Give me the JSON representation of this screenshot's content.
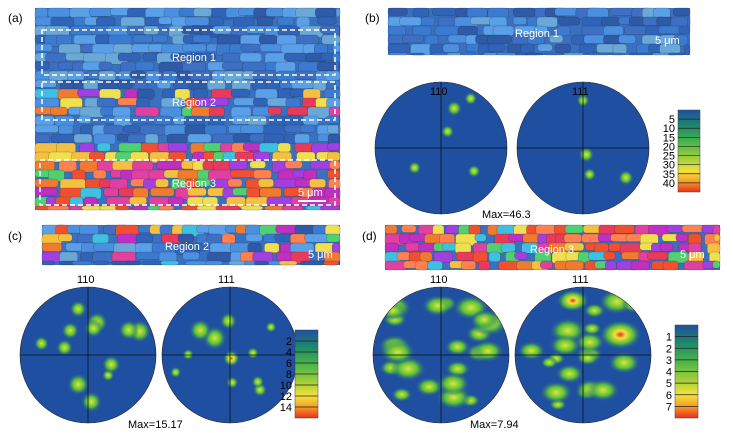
{
  "panels": [
    {
      "id": "a",
      "label": "(a)",
      "scale_bar": "5 μm",
      "regions": [
        "Region 1",
        "Region 2",
        "Region 3"
      ]
    },
    {
      "id": "b",
      "label": "(b)",
      "strip_region": "Region 1",
      "scale_bar": "5 μm",
      "poles": [
        "110",
        "111"
      ],
      "max": "Max=46.3",
      "colorbar": [
        "5",
        "10",
        "15",
        "20",
        "25",
        "30",
        "35",
        "40"
      ],
      "spots": [
        [
          0.2,
          -0.6,
          0.12
        ],
        [
          0.45,
          -0.75,
          0.1
        ],
        [
          0.1,
          -0.25,
          0.1
        ],
        [
          -0.4,
          0.3,
          0.1
        ],
        [
          0.5,
          0.35,
          0.1
        ]
      ],
      "spots2": [
        [
          0.0,
          -0.72,
          0.1
        ],
        [
          0.05,
          0.1,
          0.12
        ],
        [
          0.1,
          0.4,
          0.1
        ],
        [
          0.65,
          0.45,
          0.12
        ]
      ]
    },
    {
      "id": "c",
      "label": "(c)",
      "strip_region": "Region 2",
      "scale_bar": "5 μm",
      "poles": [
        "110",
        "111"
      ],
      "max": "Max=15.17",
      "colorbar": [
        "2",
        "4",
        "6",
        "8",
        "10",
        "12",
        "14"
      ]
    },
    {
      "id": "d",
      "label": "(d)",
      "strip_region": "Region 3",
      "scale_bar": "5 μm",
      "poles": [
        "110",
        "111"
      ],
      "max": "Max=7.94",
      "colorbar": [
        "1",
        "2",
        "3",
        "4",
        "5",
        "6",
        "7"
      ]
    }
  ],
  "colors": {
    "low": "#1f4fa0",
    "mid": "#5bbf3a",
    "high": "#e8301c",
    "frame": "#222222"
  }
}
